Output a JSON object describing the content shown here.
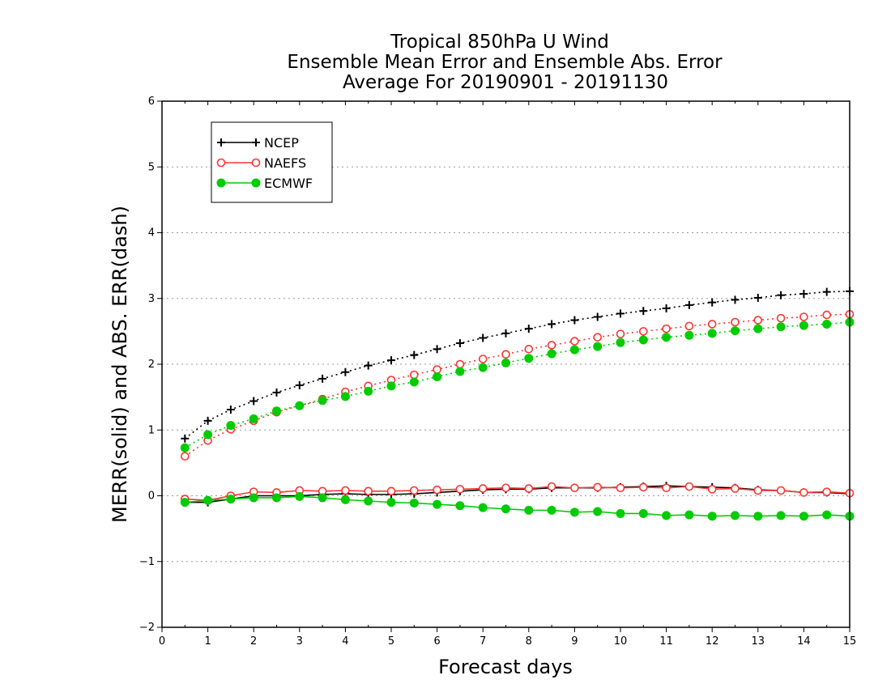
{
  "chart_data": {
    "type": "line",
    "title_lines": [
      "Tropical 850hPa U Wind",
      "Ensemble Mean Error and Ensemble Abs. Error",
      "Average For 20190901 - 20191130"
    ],
    "xlabel": "Forecast days",
    "ylabel": "MERR(solid) and ABS. ERR(dash)",
    "xlim": [
      0,
      15
    ],
    "ylim": [
      -2,
      6
    ],
    "x_ticks": [
      0,
      1,
      2,
      3,
      4,
      5,
      6,
      7,
      8,
      9,
      10,
      11,
      12,
      13,
      14,
      15
    ],
    "y_ticks": [
      -2,
      -1,
      0,
      1,
      2,
      3,
      4,
      5,
      6
    ],
    "grid": "horizontal dotted",
    "legend_position": "top-left",
    "x": [
      0.5,
      1,
      1.5,
      2,
      2.5,
      3,
      3.5,
      4,
      4.5,
      5,
      5.5,
      6,
      6.5,
      7,
      7.5,
      8,
      8.5,
      9,
      9.5,
      10,
      10.5,
      11,
      11.5,
      12,
      12.5,
      13,
      13.5,
      14,
      14.5,
      15
    ],
    "series": [
      {
        "name": "NCEP",
        "color": "#000000",
        "marker": "plus",
        "merr": [
          -0.1,
          -0.1,
          -0.05,
          0.0,
          0.0,
          0.0,
          0.02,
          0.03,
          0.02,
          0.02,
          0.03,
          0.05,
          0.07,
          0.09,
          0.1,
          0.1,
          0.12,
          0.12,
          0.12,
          0.13,
          0.14,
          0.15,
          0.14,
          0.13,
          0.12,
          0.09,
          0.08,
          0.05,
          0.05,
          0.03
        ],
        "abs_err": [
          0.87,
          1.14,
          1.31,
          1.44,
          1.57,
          1.68,
          1.78,
          1.88,
          1.98,
          2.06,
          2.14,
          2.23,
          2.32,
          2.4,
          2.47,
          2.54,
          2.61,
          2.67,
          2.72,
          2.77,
          2.81,
          2.85,
          2.9,
          2.94,
          2.98,
          3.01,
          3.05,
          3.07,
          3.1,
          3.11
        ]
      },
      {
        "name": "NAEFS",
        "color": "#ff3333",
        "marker": "open-circle",
        "merr": [
          -0.05,
          -0.07,
          0.0,
          0.06,
          0.05,
          0.08,
          0.07,
          0.08,
          0.07,
          0.07,
          0.08,
          0.09,
          0.1,
          0.11,
          0.12,
          0.11,
          0.14,
          0.12,
          0.13,
          0.12,
          0.13,
          0.12,
          0.14,
          0.1,
          0.11,
          0.08,
          0.08,
          0.05,
          0.06,
          0.04
        ],
        "abs_err": [
          0.6,
          0.84,
          1.01,
          1.14,
          1.27,
          1.37,
          1.47,
          1.58,
          1.67,
          1.76,
          1.84,
          1.92,
          2.0,
          2.08,
          2.15,
          2.23,
          2.29,
          2.35,
          2.41,
          2.46,
          2.5,
          2.54,
          2.58,
          2.61,
          2.64,
          2.67,
          2.7,
          2.72,
          2.75,
          2.76
        ]
      },
      {
        "name": "ECMWF",
        "color": "#00cc00",
        "marker": "filled-circle",
        "merr": [
          -0.1,
          -0.07,
          -0.05,
          -0.03,
          -0.03,
          -0.01,
          -0.03,
          -0.06,
          -0.08,
          -0.1,
          -0.11,
          -0.13,
          -0.15,
          -0.18,
          -0.2,
          -0.22,
          -0.22,
          -0.25,
          -0.24,
          -0.27,
          -0.27,
          -0.3,
          -0.29,
          -0.31,
          -0.3,
          -0.31,
          -0.3,
          -0.31,
          -0.29,
          -0.31
        ],
        "abs_err": [
          0.73,
          0.93,
          1.07,
          1.17,
          1.29,
          1.37,
          1.45,
          1.51,
          1.59,
          1.67,
          1.73,
          1.81,
          1.89,
          1.95,
          2.02,
          2.09,
          2.16,
          2.22,
          2.27,
          2.33,
          2.37,
          2.41,
          2.44,
          2.47,
          2.51,
          2.54,
          2.57,
          2.59,
          2.61,
          2.64
        ]
      }
    ]
  }
}
